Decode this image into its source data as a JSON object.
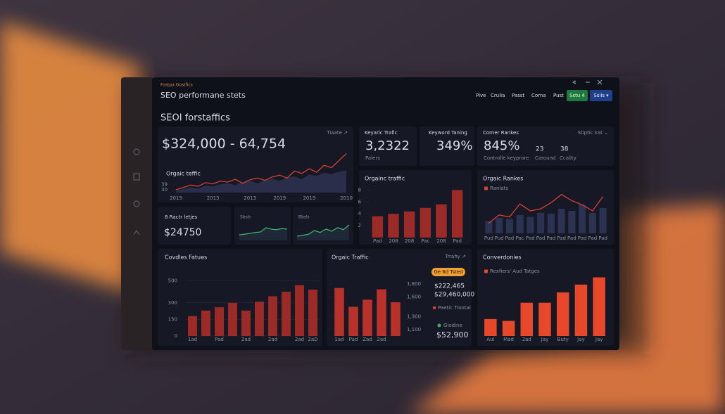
{
  "header": {
    "eyebrow": "Fostpa Gostfics",
    "title": "SEO performane stets",
    "section": "SEOI forstaffics",
    "buttons": [
      "Pive",
      "Crulia",
      "Passt",
      "Corna",
      "Pust"
    ],
    "primary_button": "Sstu 4",
    "select_button": "Ssiis ▾"
  },
  "kpis": {
    "main_value": "$324,000 - 64,754",
    "main_link": "Tiaate ↗",
    "keyword_traffic": {
      "label": "Keyaric Trafic",
      "value": "3,2322",
      "note": "Paiers"
    },
    "keyword_ranking": {
      "label": "Keyword Taning",
      "value": "349%"
    },
    "corner": {
      "label": "Corner Rankes",
      "filter": "Stiptic kat ⌄",
      "value": "845%",
      "note": "Controlle keyprore",
      "a_value": "23",
      "a_label": "Caround",
      "b_value": "38",
      "b_label": "Ccality"
    },
    "small": {
      "label": "8 Ractr letjes",
      "value": "$24750"
    },
    "organic_link": "Trrahy ↗"
  },
  "side_panel": {
    "pill": "Ge 6d Tsted",
    "value_a": "$222,465",
    "value_b": "$29,460,000",
    "legend_a": "Paetic Tiootal",
    "legend_b": "Giodine",
    "value_c": "$52,900"
  },
  "chart_data": [
    {
      "type": "line",
      "title": "Orgaic teffic",
      "categories": [
        "2019",
        null,
        null,
        null,
        null,
        "2013",
        null,
        null,
        null,
        null,
        "2013",
        null,
        null,
        null,
        "2019",
        null,
        null,
        null,
        "2019",
        null,
        null,
        null,
        null,
        "2010"
      ],
      "series": [
        {
          "color": "#2c3150",
          "area": true,
          "values": [
            28,
            30,
            33,
            31,
            36,
            35,
            38,
            40,
            37,
            42,
            44,
            40,
            45,
            48,
            44,
            50,
            52,
            47,
            55,
            53,
            58,
            56,
            60,
            62
          ]
        },
        {
          "color": "#d8402c",
          "values": [
            30,
            34,
            38,
            36,
            42,
            40,
            45,
            43,
            48,
            41,
            47,
            50,
            46,
            52,
            55,
            50,
            62,
            58,
            66,
            60,
            72,
            68,
            80,
            92
          ]
        }
      ],
      "ylim": [
        25,
        100
      ],
      "yticks": [
        30,
        39
      ]
    },
    {
      "type": "line",
      "title": "Sbstr",
      "categories": [
        null,
        null,
        null,
        null,
        null,
        null,
        null,
        null,
        null,
        null
      ],
      "series": [
        {
          "color": "#3fae6a",
          "area": true,
          "fill": "#1f2a3a",
          "values": [
            20,
            22,
            25,
            28,
            30,
            45,
            40,
            38,
            42,
            40
          ]
        }
      ],
      "ylim": [
        0,
        60
      ]
    },
    {
      "type": "line",
      "title": "Bbstr",
      "categories": [
        null,
        null,
        null,
        null,
        null,
        null,
        null,
        null,
        null,
        null
      ],
      "series": [
        {
          "color": "#3fae6a",
          "area": true,
          "fill": "#1f2a3a",
          "values": [
            15,
            18,
            22,
            35,
            28,
            40,
            33,
            45,
            38,
            55
          ]
        }
      ],
      "ylim": [
        0,
        60
      ]
    },
    {
      "type": "bar",
      "title": "Orgainc traffic",
      "categories": [
        "Pad",
        "208",
        "208",
        "Pac",
        "208",
        "Pad"
      ],
      "series": [
        {
          "color": "#9c2b28",
          "values": [
            3.6,
            4.0,
            4.4,
            5.0,
            5.6,
            8.0
          ]
        }
      ],
      "ylim": [
        0,
        9
      ],
      "yticks": [
        2,
        4,
        6,
        8
      ]
    },
    {
      "type": "bar",
      "title": "Orgaic Rankes",
      "categories": [
        "Pud",
        "Pud",
        "Pad",
        "Pac",
        "Pad",
        "Pad",
        "Pad",
        "Pad",
        "Pad",
        "Pad",
        "Pad",
        "Pad"
      ],
      "series": [
        {
          "type": "bar",
          "color": "#2c3352",
          "values": [
            30,
            38,
            35,
            45,
            40,
            50,
            48,
            60,
            55,
            70,
            50,
            62
          ]
        },
        {
          "type": "line",
          "name": "Ranlats",
          "color": "#d8402c",
          "values": [
            25,
            45,
            40,
            72,
            55,
            60,
            75,
            95,
            80,
            70,
            55,
            90
          ]
        }
      ],
      "ylim": [
        0,
        110
      ]
    },
    {
      "type": "bar",
      "title": "Covdles Fatues",
      "categories": [
        "1ad",
        null,
        "Pad",
        null,
        "2ad",
        null,
        "2ad",
        null,
        "2ad",
        "2aD"
      ],
      "series": [
        {
          "color": "#9c2b28",
          "values": [
            180,
            230,
            260,
            300,
            230,
            310,
            360,
            400,
            460,
            420
          ]
        }
      ],
      "ylim": [
        0,
        560
      ],
      "yticks": [
        0,
        150,
        300,
        500
      ],
      "grid": true
    },
    {
      "type": "bar",
      "title": "Orgaic Traffic",
      "categories": [
        "1ad",
        "Pad",
        "Zad",
        "2ad",
        null
      ],
      "series": [
        {
          "color": "#b8322a",
          "values": [
            1740,
            1450,
            1560,
            1720,
            1520
          ]
        }
      ],
      "ylim": [
        1000,
        1900
      ],
      "yticks": [
        {
          "value": 1100,
          "label": "1,100"
        },
        {
          "value": 1300,
          "label": "1,300"
        },
        {
          "value": 1600,
          "label": "1,600"
        },
        {
          "value": 1800,
          "label": "1,800"
        }
      ]
    },
    {
      "type": "bar",
      "title": "Converdonies",
      "categories": [
        "Aul",
        "Mad",
        "2ad",
        "Jay",
        "Buty",
        "Jay",
        "Jay"
      ],
      "series": [
        {
          "type": "bar",
          "name": "Rexfiers' Aud Tatges",
          "color": "#e8482a",
          "values": [
            28,
            25,
            55,
            55,
            72,
            85,
            97
          ]
        }
      ],
      "ylim": [
        0,
        100
      ]
    }
  ]
}
